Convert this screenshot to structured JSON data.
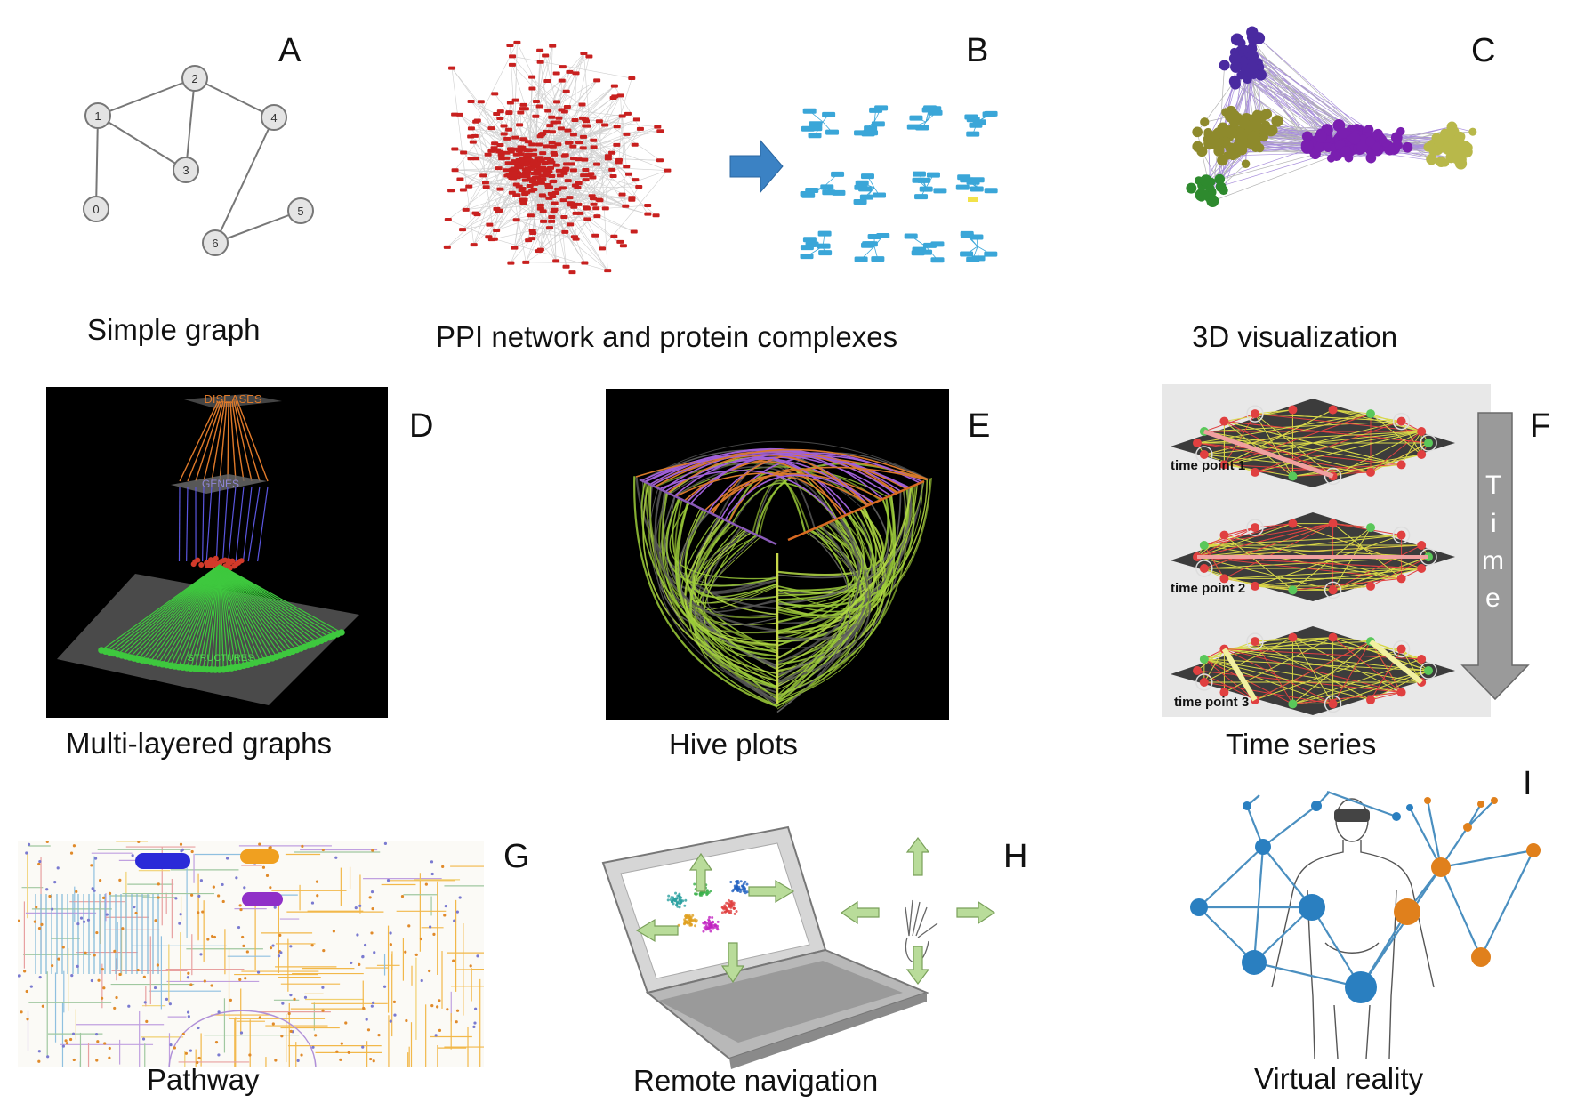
{
  "panels": [
    {
      "letter": "A",
      "caption": "Simple graph"
    },
    {
      "letter": "B",
      "caption": "PPI network and protein complexes"
    },
    {
      "letter": "C",
      "caption": "3D visualization"
    },
    {
      "letter": "D",
      "caption": "Multi-layered graphs"
    },
    {
      "letter": "E",
      "caption": "Hive plots"
    },
    {
      "letter": "F",
      "caption": "Time series"
    },
    {
      "letter": "G",
      "caption": "Pathway"
    },
    {
      "letter": "H",
      "caption": "Remote navigation"
    },
    {
      "letter": "I",
      "caption": "Virtual reality"
    }
  ],
  "simple_graph": {
    "nodes": [
      "0",
      "1",
      "2",
      "3",
      "4",
      "5",
      "6"
    ]
  },
  "multilayer": {
    "layers": [
      "DISEASES",
      "GENES",
      "STRUCTURES"
    ]
  },
  "time_series": {
    "time_points": [
      "time point 1",
      "time point 2",
      "time point 3"
    ],
    "arrow_letters": [
      "T",
      "i",
      "m",
      "e"
    ]
  },
  "colors": {
    "ppi_red": "#c8201f",
    "complex_blue": "#3aa6d8",
    "arrow_blue": "#3b82c4",
    "olive": "#9a9a38",
    "purple": "#7a1fb0",
    "hive_green": "#9ccc3a",
    "nav_arrow": "#b9dc9a",
    "vr_blue": "#2a7fc0",
    "vr_orange": "#e0801c"
  }
}
